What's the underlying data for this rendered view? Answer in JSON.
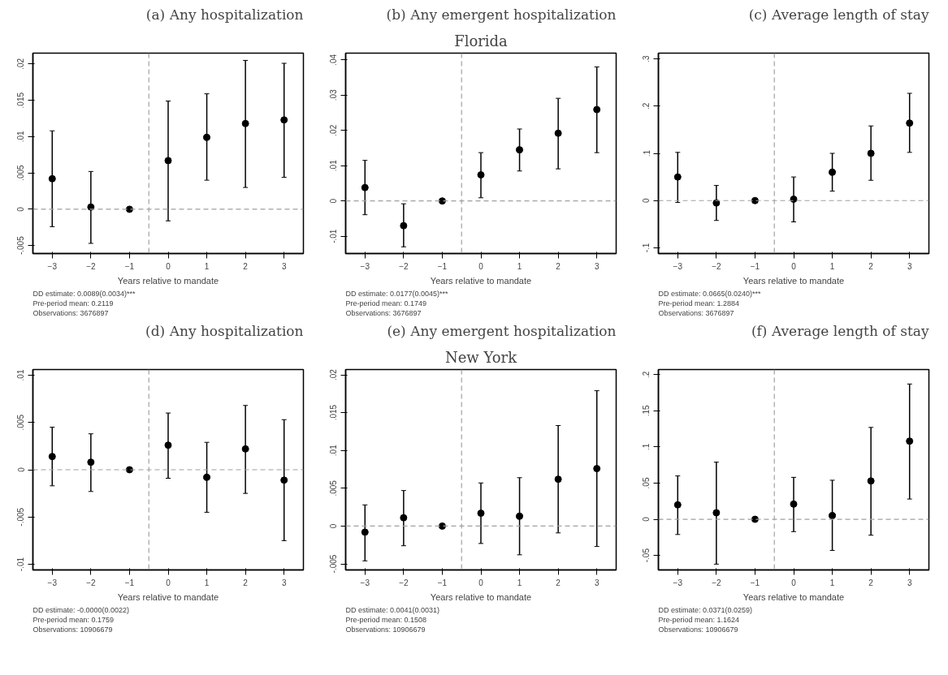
{
  "chart_data": [
    {
      "type": "scatter",
      "title": "(a) Any hospitalization",
      "xlabel": "Years relative to mandate",
      "subtitle": null,
      "x": [
        -3,
        -2,
        -1,
        0,
        1,
        2,
        3
      ],
      "xlim": [
        -3.5,
        3.5
      ],
      "xticks": [
        -3,
        -2,
        -1,
        0,
        1,
        2,
        3
      ],
      "ylim": [
        -0.0061,
        0.0215
      ],
      "yticks": [
        {
          "value": -0.005,
          "label": "-.005"
        },
        {
          "value": 0,
          "label": "0"
        },
        {
          "value": 0.005,
          "label": ".005"
        },
        {
          "value": 0.01,
          "label": ".01"
        },
        {
          "value": 0.015,
          "label": ".015"
        },
        {
          "value": 0.02,
          "label": ".02"
        }
      ],
      "series": [
        {
          "color": "#000000",
          "values": [
            0.0042,
            0.0003,
            0,
            0.0067,
            0.0099,
            0.0118,
            0.0123
          ],
          "errors": [
            [
              -0.0024,
              0.0108
            ],
            [
              -0.0047,
              0.0052
            ],
            null,
            [
              -0.0016,
              0.0149
            ],
            [
              0.004,
              0.0159
            ],
            [
              0.003,
              0.0205
            ],
            [
              0.0044,
              0.0201
            ]
          ]
        }
      ],
      "marker": "circle",
      "grid": false,
      "ref_lines": [
        {
          "axis": "x",
          "value": -0.5,
          "color": "#a0a0a0",
          "line_style": "dashed"
        },
        {
          "axis": "y",
          "value": 0,
          "color": "#a0a0a0",
          "line_style": "dashed"
        }
      ],
      "annotations": [
        "DD estimate: 0.0089(0.0034)***",
        "Pre-period mean: 0.2119",
        "Observations: 3676897"
      ]
    },
    {
      "type": "scatter",
      "title": "(b) Any emergent hospitalization",
      "xlabel": "Years relative to mandate",
      "subtitle": "Florida",
      "x": [
        -3,
        -2,
        -1,
        0,
        1,
        2,
        3
      ],
      "xlim": [
        -3.5,
        3.5
      ],
      "xticks": [
        -3,
        -2,
        -1,
        0,
        1,
        2,
        3
      ],
      "ylim": [
        -0.0149,
        0.0419
      ],
      "yticks": [
        {
          "value": -0.01,
          "label": "-.01"
        },
        {
          "value": 0,
          "label": "0"
        },
        {
          "value": 0.01,
          "label": ".01"
        },
        {
          "value": 0.02,
          "label": ".02"
        },
        {
          "value": 0.03,
          "label": ".03"
        },
        {
          "value": 0.04,
          "label": ".04"
        }
      ],
      "series": [
        {
          "color": "#000000",
          "values": [
            0.0038,
            -0.007,
            0,
            0.0074,
            0.0145,
            0.0192,
            0.0259
          ],
          "errors": [
            [
              -0.0039,
              0.0115
            ],
            [
              -0.013,
              -0.0008
            ],
            null,
            [
              0.0009,
              0.0137
            ],
            [
              0.0085,
              0.0204
            ],
            [
              0.0091,
              0.0291
            ],
            [
              0.0137,
              0.038
            ]
          ]
        }
      ],
      "marker": "circle",
      "grid": false,
      "ref_lines": [
        {
          "axis": "x",
          "value": -0.5,
          "color": "#a0a0a0",
          "line_style": "dashed"
        },
        {
          "axis": "y",
          "value": 0,
          "color": "#a0a0a0",
          "line_style": "dashed"
        }
      ],
      "annotations": [
        "DD estimate: 0.0177(0.0045)***",
        "Pre-period mean: 0.1749",
        "Observations: 3676897"
      ]
    },
    {
      "type": "scatter",
      "title": "(c) Average length of stay",
      "xlabel": "Years relative to mandate",
      "subtitle": null,
      "x": [
        -3,
        -2,
        -1,
        0,
        1,
        2,
        3
      ],
      "xlim": [
        -3.5,
        3.5
      ],
      "xticks": [
        -3,
        -2,
        -1,
        0,
        1,
        2,
        3
      ],
      "ylim": [
        -0.112,
        0.312
      ],
      "yticks": [
        {
          "value": -0.1,
          "label": "-.1"
        },
        {
          "value": 0,
          "label": "0"
        },
        {
          "value": 0.1,
          "label": ".1"
        },
        {
          "value": 0.2,
          "label": ".2"
        },
        {
          "value": 0.3,
          "label": ".3"
        }
      ],
      "series": [
        {
          "color": "#000000",
          "values": [
            0.05,
            -0.005,
            0,
            0.003,
            0.06,
            0.1,
            0.164
          ],
          "errors": [
            [
              -0.004,
              0.102
            ],
            [
              -0.042,
              0.032
            ],
            null,
            [
              -0.045,
              0.05
            ],
            [
              0.02,
              0.1
            ],
            [
              0.043,
              0.158
            ],
            [
              0.102,
              0.227
            ]
          ]
        }
      ],
      "marker": "circle",
      "grid": false,
      "ref_lines": [
        {
          "axis": "x",
          "value": -0.5,
          "color": "#a0a0a0",
          "line_style": "dashed"
        },
        {
          "axis": "y",
          "value": 0,
          "color": "#a0a0a0",
          "line_style": "dashed"
        }
      ],
      "annotations": [
        "DD estimate: 0.0665(0.0240)***",
        "Pre-period mean: 1.2884",
        "Observations: 3676897"
      ]
    },
    {
      "type": "scatter",
      "title": "(d) Any hospitalization",
      "xlabel": "Years relative to mandate",
      "subtitle": null,
      "x": [
        -3,
        -2,
        -1,
        0,
        1,
        2,
        3
      ],
      "xlim": [
        -3.5,
        3.5
      ],
      "xticks": [
        -3,
        -2,
        -1,
        0,
        1,
        2,
        3
      ],
      "ylim": [
        -0.0106,
        0.0106
      ],
      "yticks": [
        {
          "value": -0.01,
          "label": "-.01"
        },
        {
          "value": -0.005,
          "label": "-.005"
        },
        {
          "value": 0,
          "label": "0"
        },
        {
          "value": 0.005,
          "label": ".005"
        },
        {
          "value": 0.01,
          "label": ".01"
        }
      ],
      "series": [
        {
          "color": "#000000",
          "values": [
            0.0014,
            0.0008,
            0,
            0.0026,
            -0.0008,
            0.0022,
            -0.0011
          ],
          "errors": [
            [
              -0.0017,
              0.0045
            ],
            [
              -0.0023,
              0.0038
            ],
            null,
            [
              -0.0009,
              0.006
            ],
            [
              -0.0045,
              0.0029
            ],
            [
              -0.0025,
              0.0068
            ],
            [
              -0.0075,
              0.0053
            ]
          ]
        }
      ],
      "marker": "circle",
      "grid": false,
      "ref_lines": [
        {
          "axis": "x",
          "value": -0.5,
          "color": "#a0a0a0",
          "line_style": "dashed"
        },
        {
          "axis": "y",
          "value": 0,
          "color": "#a0a0a0",
          "line_style": "dashed"
        }
      ],
      "annotations": [
        "DD estimate: -0.0000(0.0022)",
        "Pre-period mean: 0.1759",
        "Observations: 10906679"
      ]
    },
    {
      "type": "scatter",
      "title": "(e) Any emergent hospitalization",
      "xlabel": "Years relative to mandate",
      "subtitle": "New York",
      "x": [
        -3,
        -2,
        -1,
        0,
        1,
        2,
        3
      ],
      "xlim": [
        -3.5,
        3.5
      ],
      "xticks": [
        -3,
        -2,
        -1,
        0,
        1,
        2,
        3
      ],
      "ylim": [
        -0.0058,
        0.0207
      ],
      "yticks": [
        {
          "value": -0.005,
          "label": "-.005"
        },
        {
          "value": 0,
          "label": "0"
        },
        {
          "value": 0.005,
          "label": ".005"
        },
        {
          "value": 0.01,
          "label": ".01"
        },
        {
          "value": 0.015,
          "label": ".015"
        },
        {
          "value": 0.02,
          "label": ".02"
        }
      ],
      "series": [
        {
          "color": "#000000",
          "values": [
            -0.0008,
            0.0011,
            0,
            0.0017,
            0.0013,
            0.0062,
            0.0076
          ],
          "errors": [
            [
              -0.0046,
              0.0028
            ],
            [
              -0.0026,
              0.0047
            ],
            null,
            [
              -0.0023,
              0.0057
            ],
            [
              -0.0038,
              0.0064
            ],
            [
              -0.0009,
              0.0133
            ],
            [
              -0.0027,
              0.0179
            ]
          ]
        }
      ],
      "marker": "circle",
      "grid": false,
      "ref_lines": [
        {
          "axis": "x",
          "value": -0.5,
          "color": "#a0a0a0",
          "line_style": "dashed"
        },
        {
          "axis": "y",
          "value": 0,
          "color": "#a0a0a0",
          "line_style": "dashed"
        }
      ],
      "annotations": [
        "DD estimate: 0.0041(0.0031)",
        "Pre-period mean: 0.1508",
        "Observations: 10906679"
      ]
    },
    {
      "type": "scatter",
      "title": "(f) Average length of stay",
      "xlabel": "Years relative to mandate",
      "subtitle": null,
      "x": [
        -3,
        -2,
        -1,
        0,
        1,
        2,
        3
      ],
      "xlim": [
        -3.5,
        3.5
      ],
      "xticks": [
        -3,
        -2,
        -1,
        0,
        1,
        2,
        3
      ],
      "ylim": [
        -0.07,
        0.207
      ],
      "yticks": [
        {
          "value": -0.05,
          "label": "-.05"
        },
        {
          "value": 0,
          "label": "0"
        },
        {
          "value": 0.05,
          "label": ".05"
        },
        {
          "value": 0.1,
          "label": ".1"
        },
        {
          "value": 0.15,
          "label": ".15"
        },
        {
          "value": 0.2,
          "label": ".2"
        }
      ],
      "series": [
        {
          "color": "#000000",
          "values": [
            0.02,
            0.009,
            0,
            0.021,
            0.005,
            0.053,
            0.108
          ],
          "errors": [
            [
              -0.021,
              0.06
            ],
            [
              -0.062,
              0.079
            ],
            null,
            [
              -0.017,
              0.058
            ],
            [
              -0.043,
              0.054
            ],
            [
              -0.022,
              0.127
            ],
            [
              0.028,
              0.187
            ]
          ]
        }
      ],
      "marker": "circle",
      "grid": false,
      "ref_lines": [
        {
          "axis": "x",
          "value": -0.5,
          "color": "#a0a0a0",
          "line_style": "dashed"
        },
        {
          "axis": "y",
          "value": 0,
          "color": "#a0a0a0",
          "line_style": "dashed"
        }
      ],
      "annotations": [
        "DD estimate: 0.0371(0.0259)",
        "Pre-period mean: 1.1624",
        "Observations: 10906679"
      ]
    }
  ]
}
